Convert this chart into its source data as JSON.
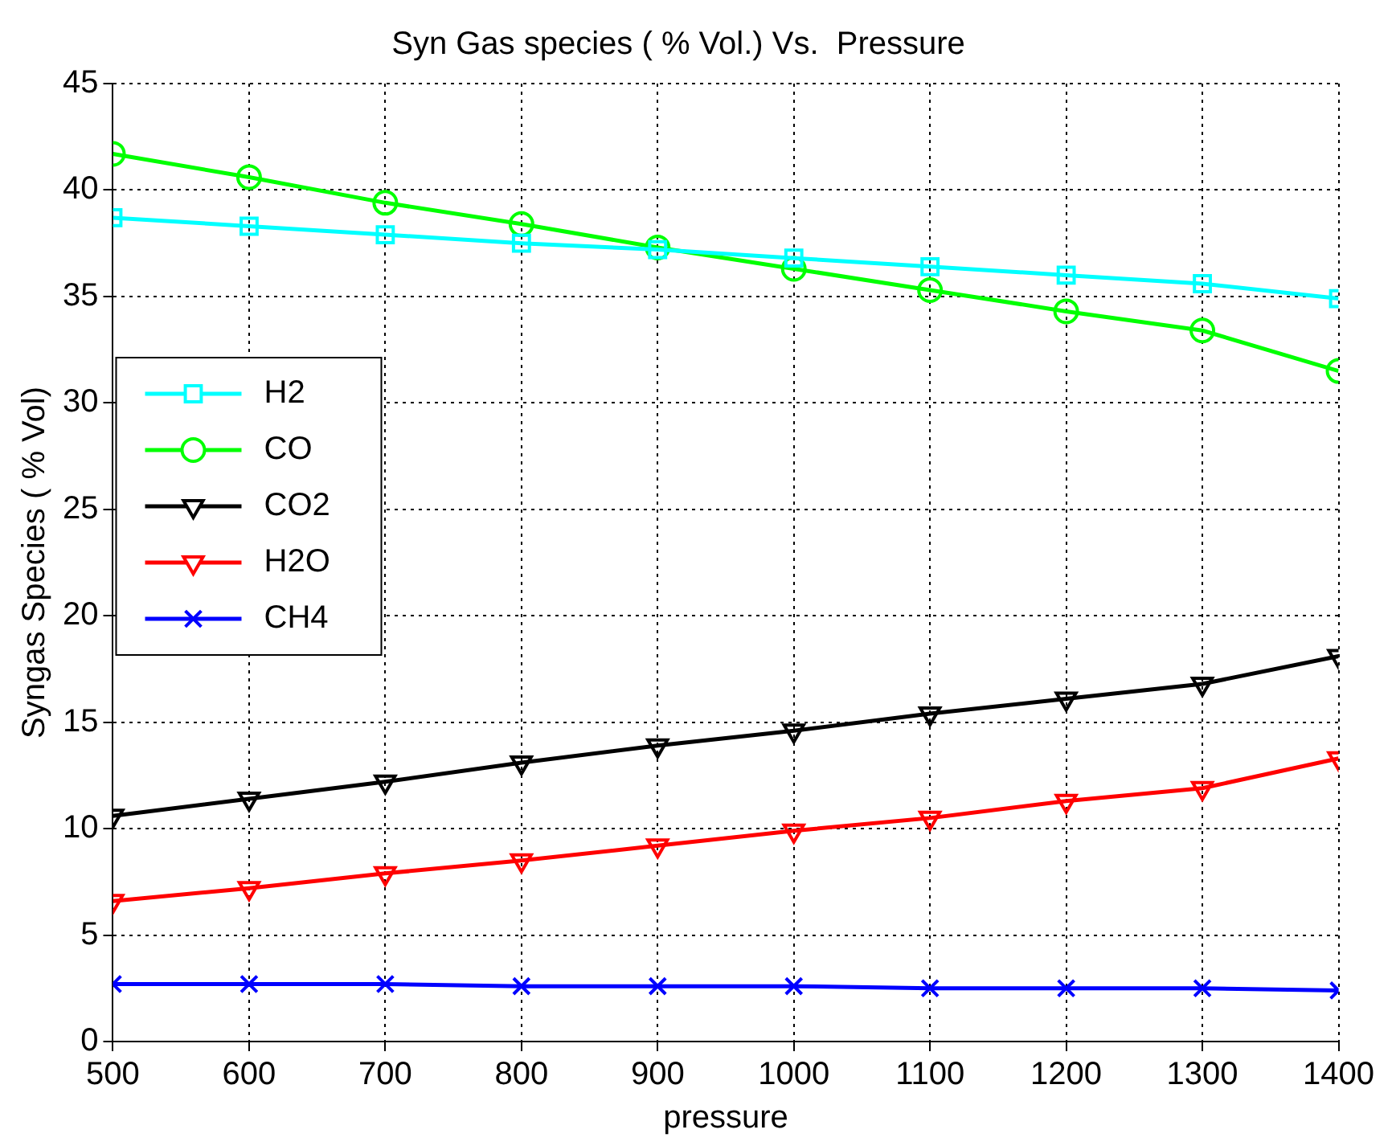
{
  "chart_data": {
    "type": "line",
    "title": "Syn Gas species ( % Vol.) Vs.  Pressure",
    "xlabel": "pressure",
    "ylabel": "Syngas Species ( % Vol)",
    "x": [
      500,
      600,
      700,
      800,
      900,
      1000,
      1100,
      1200,
      1300,
      1400
    ],
    "xlim": [
      500,
      1400
    ],
    "xticks": [
      500,
      600,
      700,
      800,
      900,
      1000,
      1100,
      1200,
      1300,
      1400
    ],
    "ylim": [
      0,
      45
    ],
    "yticks": [
      0,
      5,
      10,
      15,
      20,
      25,
      30,
      35,
      40,
      45
    ],
    "grid": true,
    "legend": "left",
    "line_style": "solid",
    "series": [
      {
        "name": "H2",
        "color": "#00ffff",
        "marker": "square",
        "values": [
          38.7,
          38.3,
          37.9,
          37.5,
          37.2,
          36.8,
          36.4,
          36.0,
          35.6,
          34.9
        ]
      },
      {
        "name": "CO",
        "color": "#00ff00",
        "marker": "circle",
        "values": [
          41.7,
          40.6,
          39.4,
          38.4,
          37.3,
          36.3,
          35.3,
          34.3,
          33.4,
          31.5
        ]
      },
      {
        "name": "CO2",
        "color": "#000000",
        "marker": "triangle",
        "values": [
          10.6,
          11.4,
          12.2,
          13.1,
          13.9,
          14.6,
          15.4,
          16.1,
          16.8,
          18.1
        ]
      },
      {
        "name": "H2O",
        "color": "#ff0000",
        "marker": "triangle",
        "values": [
          6.6,
          7.2,
          7.9,
          8.5,
          9.2,
          9.9,
          10.5,
          11.3,
          11.9,
          13.3
        ]
      },
      {
        "name": "CH4",
        "color": "#0000ff",
        "marker": "cross",
        "values": [
          2.7,
          2.7,
          2.7,
          2.6,
          2.6,
          2.6,
          2.5,
          2.5,
          2.5,
          2.4
        ]
      }
    ]
  }
}
